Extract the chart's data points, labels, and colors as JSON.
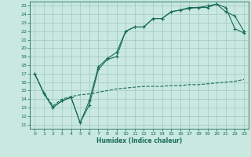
{
  "xlabel": "Humidex (Indice chaleur)",
  "bg_color": "#c8e8e0",
  "line_color": "#1a6b5a",
  "grid_color": "#a0c8c0",
  "xlim": [
    -0.5,
    23.5
  ],
  "ylim": [
    10.5,
    25.5
  ],
  "xticks": [
    0,
    1,
    2,
    3,
    4,
    5,
    6,
    7,
    8,
    9,
    10,
    11,
    12,
    13,
    14,
    15,
    16,
    17,
    18,
    19,
    20,
    21,
    22,
    23
  ],
  "yticks": [
    11,
    12,
    13,
    14,
    15,
    16,
    17,
    18,
    19,
    20,
    21,
    22,
    23,
    24,
    25
  ],
  "line1_x": [
    0,
    1,
    2,
    3,
    4,
    5,
    6,
    7,
    8,
    9,
    10,
    11,
    12,
    13,
    14,
    15,
    16,
    17,
    18,
    19,
    20,
    21,
    22,
    23
  ],
  "line1_y": [
    17.0,
    14.7,
    13.0,
    13.8,
    14.2,
    11.2,
    13.3,
    17.5,
    18.7,
    19.0,
    22.0,
    22.5,
    22.5,
    23.5,
    23.5,
    24.3,
    24.5,
    24.7,
    24.8,
    24.8,
    25.2,
    24.3,
    23.8,
    22.0
  ],
  "line2_x": [
    0,
    1,
    2,
    3,
    4,
    5,
    6,
    7,
    8,
    9,
    10,
    11,
    12,
    13,
    14,
    15,
    16,
    17,
    18,
    19,
    20,
    21,
    22,
    23
  ],
  "line2_y": [
    17.0,
    14.8,
    13.2,
    14.0,
    14.3,
    14.5,
    14.6,
    14.8,
    15.0,
    15.2,
    15.3,
    15.4,
    15.5,
    15.5,
    15.5,
    15.6,
    15.6,
    15.7,
    15.7,
    15.8,
    15.9,
    16.0,
    16.1,
    16.3
  ],
  "line3_x": [
    0,
    1,
    2,
    3,
    4,
    5,
    6,
    7,
    8,
    9,
    10,
    11,
    12,
    13,
    14,
    15,
    16,
    17,
    18,
    19,
    20,
    21,
    22,
    23
  ],
  "line3_y": [
    17.0,
    14.7,
    13.0,
    13.8,
    14.2,
    11.2,
    13.8,
    17.8,
    18.8,
    19.5,
    22.0,
    22.5,
    22.5,
    23.5,
    23.5,
    24.3,
    24.5,
    24.8,
    24.8,
    25.0,
    25.2,
    24.8,
    22.3,
    21.8
  ]
}
